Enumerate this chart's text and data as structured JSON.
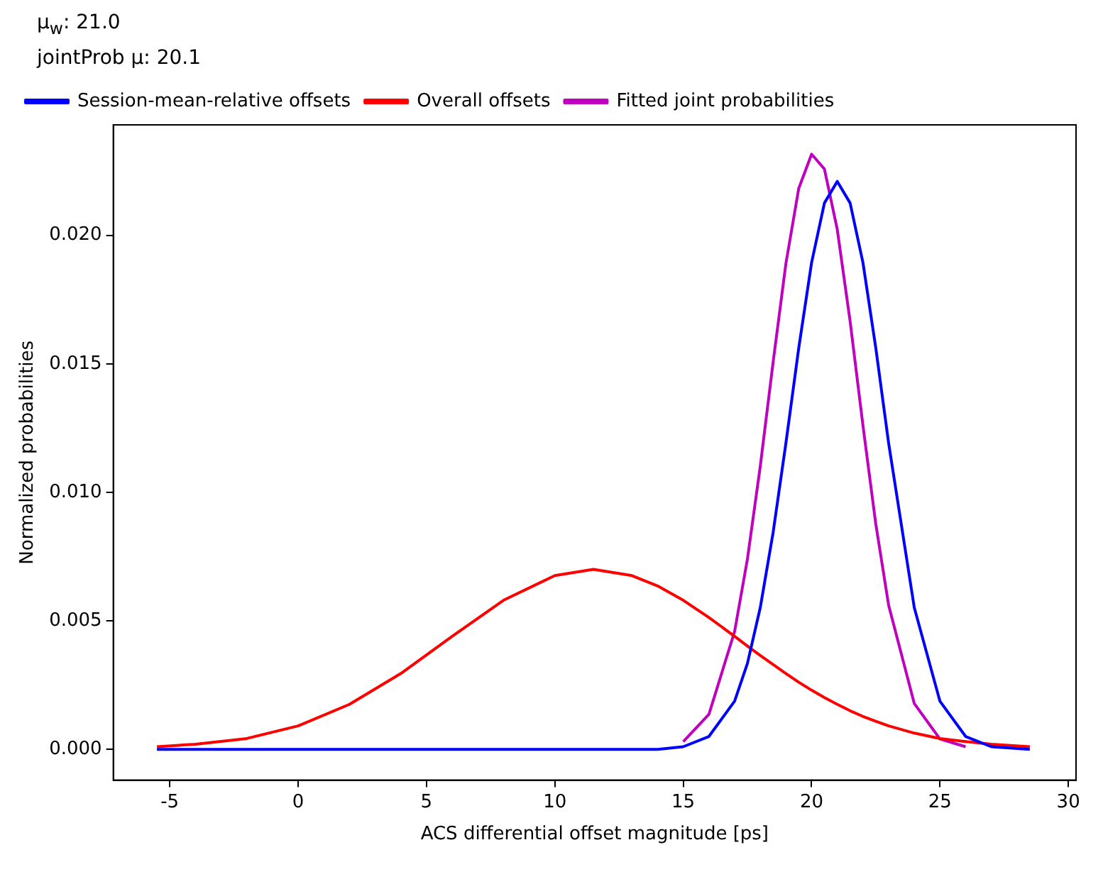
{
  "chart_data": {
    "type": "line",
    "xlabel": "ACS differential offset magnitude [ps]",
    "ylabel": "Normalized probabilities",
    "annotations": [
      "μ$_{w}$: 21.0",
      "jointProb μ:  20.1"
    ],
    "x": [
      -5.5,
      -4,
      -2,
      0,
      2,
      4,
      6,
      8,
      10,
      11.5,
      13,
      14,
      15,
      16,
      17,
      17.5,
      18,
      18.5,
      19,
      19.5,
      20,
      20.5,
      21,
      21.5,
      22,
      22.5,
      23,
      24,
      25,
      26,
      27,
      28.5
    ],
    "series": [
      {
        "name": "Fitted joint probabilities",
        "color": "#bf00bf",
        "values": [
          null,
          null,
          null,
          null,
          null,
          null,
          null,
          null,
          null,
          null,
          null,
          null,
          0.0003,
          0.00136,
          0.00458,
          0.0074,
          0.01101,
          0.01506,
          0.01891,
          0.02183,
          0.02316,
          0.02258,
          0.02023,
          0.01666,
          0.0126,
          0.00877,
          0.00561,
          0.00178,
          0.0004,
          0.0001,
          null,
          null
        ]
      },
      {
        "name": "Overall offsets",
        "color": "#ff0000",
        "values": [
          0.0001,
          0.0002,
          0.00042,
          0.00091,
          0.00175,
          0.00295,
          0.0044,
          0.0058,
          0.00676,
          0.007,
          0.00676,
          0.00636,
          0.0058,
          0.00513,
          0.0044,
          0.00402,
          0.00365,
          0.0033,
          0.00295,
          0.00261,
          0.0023,
          0.00201,
          0.00175,
          0.0015,
          0.00128,
          0.00109,
          0.00091,
          0.00063,
          0.00042,
          0.0003,
          0.0002,
          0.0001
        ]
      },
      {
        "name": "Session-mean-relative offsets",
        "color": "#0000ff",
        "values": [
          0,
          0,
          0,
          0,
          0,
          0,
          0,
          0,
          0,
          0,
          0,
          0,
          0.0001,
          0.0005,
          0.00187,
          0.00334,
          0.00551,
          0.00843,
          0.01192,
          0.01562,
          0.01894,
          0.02126,
          0.0221,
          0.02126,
          0.01894,
          0.01562,
          0.01192,
          0.00551,
          0.00187,
          0.0005,
          0.0001,
          0
        ]
      }
    ],
    "xlim": [
      -7.2,
      30.3
    ],
    "xticks": [
      -5,
      0,
      5,
      10,
      15,
      20,
      25,
      30
    ],
    "ylim": [
      -0.0012,
      0.0243
    ],
    "yticks": [
      {
        "value": 0,
        "label": "0.000"
      },
      {
        "value": 0.005,
        "label": "0.005"
      },
      {
        "value": 0.01,
        "label": "0.010"
      },
      {
        "value": 0.015,
        "label": "0.015"
      },
      {
        "value": 0.02,
        "label": "0.020"
      }
    ],
    "grid": false,
    "legend": "top left",
    "marker": "none",
    "line_style": "solid"
  }
}
